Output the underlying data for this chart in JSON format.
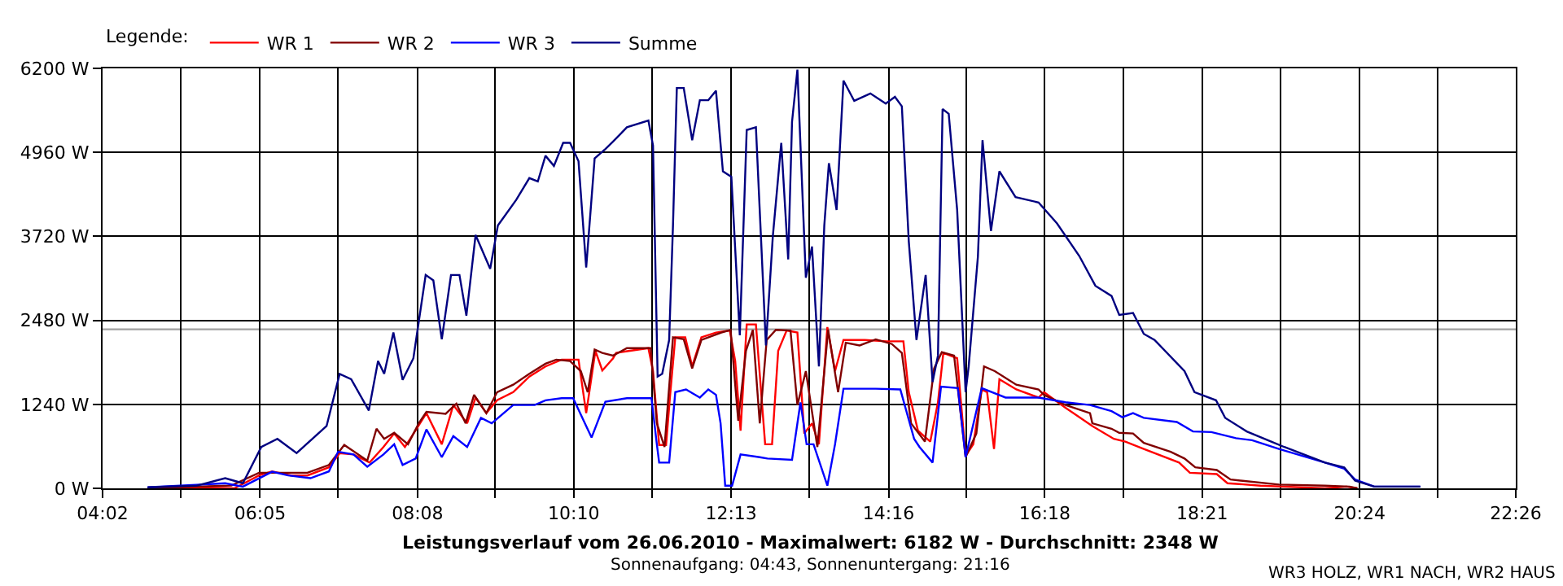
{
  "chart_data": {
    "type": "line",
    "title": "Leistungsverlauf vom 26.06.2010 - Maximalwert: 6182 W - Durchschnitt: 2348 W",
    "subtitle": "Sonnenaufgang: 04:43, Sonnenuntergang: 21:16",
    "legend_title": "Legende:",
    "legend": "top left",
    "grid": true,
    "marker": "none",
    "line_style": "solid",
    "annotations": [
      "WR3 HOLZ, WR1 NACH, WR2 HAUS"
    ],
    "xlim": [
      4.0333,
      22.4333
    ],
    "xticks": [
      {
        "value": 4.0333,
        "label": "04:02"
      },
      {
        "value": 5.0556,
        "label": null
      },
      {
        "value": 6.0833,
        "label": "06:05"
      },
      {
        "value": 7.1,
        "label": null
      },
      {
        "value": 8.1333,
        "label": "08:08"
      },
      {
        "value": 9.1444,
        "label": null
      },
      {
        "value": 10.1667,
        "label": "10:10"
      },
      {
        "value": 11.1889,
        "label": null
      },
      {
        "value": 12.2167,
        "label": "12:13"
      },
      {
        "value": 13.2333,
        "label": null
      },
      {
        "value": 14.2667,
        "label": "14:16"
      },
      {
        "value": 15.2778,
        "label": null
      },
      {
        "value": 16.3,
        "label": "16:18"
      },
      {
        "value": 17.3222,
        "label": null
      },
      {
        "value": 18.35,
        "label": "18:21"
      },
      {
        "value": 19.3667,
        "label": null
      },
      {
        "value": 20.4,
        "label": "20:24"
      },
      {
        "value": 21.4111,
        "label": null
      },
      {
        "value": 22.4333,
        "label": "22:26"
      }
    ],
    "ylim": [
      0,
      6200
    ],
    "yticks": [
      {
        "value": 0,
        "label": "0 W"
      },
      {
        "value": 1240,
        "label": "1240 W"
      },
      {
        "value": 2480,
        "label": "2480 W"
      },
      {
        "value": 3720,
        "label": "3720 W"
      },
      {
        "value": 4960,
        "label": "4960 W"
      },
      {
        "value": 6200,
        "label": "6200 W"
      }
    ],
    "ref_lines": [
      {
        "axis": "y",
        "value": 2348,
        "color": "#a0a0a0"
      }
    ],
    "series": [
      {
        "name": "WR 1",
        "color": "#ff0000",
        "x": [
          4.62,
          5.26,
          5.75,
          6.07,
          6.24,
          6.49,
          6.7,
          6.98,
          7.12,
          7.3,
          7.51,
          7.69,
          7.83,
          7.97,
          8.1,
          8.25,
          8.45,
          8.6,
          8.78,
          8.89,
          9.03,
          9.17,
          9.38,
          9.59,
          9.8,
          10.01,
          10.23,
          10.33,
          10.45,
          10.54,
          10.68,
          10.72,
          10.9,
          11.14,
          11.2,
          11.28,
          11.37,
          11.42,
          11.49,
          11.62,
          11.71,
          11.83,
          12.02,
          12.2,
          12.27,
          12.34,
          12.42,
          12.54,
          12.66,
          12.75,
          12.83,
          12.94,
          13.08,
          13.17,
          13.27,
          13.36,
          13.47,
          13.57,
          13.68,
          13.96,
          14.24,
          14.46,
          14.53,
          14.65,
          14.81,
          14.91,
          14.98,
          15.16,
          15.27,
          15.37,
          15.48,
          15.55,
          15.64,
          15.71,
          15.93,
          16.22,
          16.29,
          16.57,
          16.92,
          17.2,
          17.35,
          17.59,
          18.05,
          18.19,
          18.54,
          18.68,
          19.11,
          19.95,
          20.23,
          20.37
        ],
        "values": [
          0,
          15,
          0,
          190,
          250,
          190,
          190,
          310,
          520,
          500,
          380,
          610,
          810,
          610,
          840,
          1110,
          650,
          1230,
          960,
          1340,
          1110,
          1300,
          1420,
          1650,
          1800,
          1900,
          1900,
          1110,
          2030,
          1740,
          1920,
          2000,
          2030,
          2070,
          1730,
          640,
          640,
          1340,
          2230,
          2230,
          1800,
          2230,
          2300,
          2330,
          1880,
          850,
          2420,
          2420,
          650,
          650,
          2030,
          2330,
          2300,
          810,
          960,
          650,
          2380,
          1730,
          2190,
          2190,
          2170,
          2170,
          1420,
          850,
          690,
          1270,
          2000,
          1920,
          480,
          650,
          1460,
          1420,
          580,
          1610,
          1460,
          1340,
          1420,
          1190,
          920,
          730,
          690,
          580,
          380,
          230,
          210,
          75,
          40,
          0,
          25,
          0
        ]
      },
      {
        "name": "WR 2",
        "color": "#800000",
        "x": [
          4.62,
          5.26,
          5.71,
          6.07,
          6.7,
          6.98,
          7.18,
          7.48,
          7.6,
          7.7,
          7.83,
          8.01,
          8.15,
          8.25,
          8.5,
          8.64,
          8.76,
          8.87,
          9.03,
          9.17,
          9.38,
          9.59,
          9.8,
          9.94,
          10.12,
          10.26,
          10.35,
          10.44,
          10.54,
          10.68,
          10.86,
          11.17,
          11.25,
          11.35,
          11.46,
          11.6,
          11.71,
          11.83,
          12.09,
          12.21,
          12.31,
          12.41,
          12.5,
          12.59,
          12.68,
          12.8,
          12.99,
          13.08,
          13.19,
          13.34,
          13.48,
          13.61,
          13.71,
          13.89,
          14.1,
          14.31,
          14.44,
          14.56,
          14.74,
          14.86,
          14.96,
          15.12,
          15.27,
          15.41,
          15.51,
          15.65,
          15.93,
          16.22,
          16.29,
          16.57,
          16.89,
          16.92,
          17.17,
          17.27,
          17.45,
          17.59,
          17.94,
          18.12,
          18.26,
          18.54,
          18.72,
          19.35,
          19.95,
          20.27,
          20.37
        ],
        "values": [
          0,
          25,
          40,
          230,
          230,
          345,
          640,
          410,
          880,
          730,
          820,
          650,
          960,
          1130,
          1100,
          1250,
          960,
          1380,
          1110,
          1420,
          1530,
          1690,
          1840,
          1900,
          1880,
          1730,
          1420,
          2050,
          2000,
          1960,
          2070,
          2070,
          960,
          610,
          2230,
          2200,
          1770,
          2190,
          2300,
          2340,
          1000,
          2030,
          2340,
          960,
          2190,
          2340,
          2330,
          1230,
          1730,
          610,
          2340,
          1420,
          2150,
          2110,
          2200,
          2130,
          2000,
          960,
          690,
          1770,
          2010,
          1960,
          460,
          810,
          1800,
          1730,
          1530,
          1460,
          1380,
          1230,
          1110,
          960,
          880,
          820,
          810,
          670,
          540,
          440,
          310,
          270,
          130,
          55,
          40,
          25,
          0
        ]
      },
      {
        "name": "WR 3",
        "color": "#0000ff",
        "x": [
          4.62,
          5.63,
          5.86,
          6.24,
          6.45,
          6.74,
          6.98,
          7.1,
          7.3,
          7.48,
          7.69,
          7.83,
          7.94,
          8.11,
          8.25,
          8.45,
          8.6,
          8.78,
          8.96,
          9.1,
          9.38,
          9.66,
          9.8,
          10.01,
          10.16,
          10.33,
          10.4,
          10.58,
          10.86,
          11.18,
          11.25,
          11.28,
          11.41,
          11.49,
          11.63,
          11.81,
          11.92,
          12.02,
          12.08,
          12.14,
          12.23,
          12.34,
          12.59,
          12.69,
          13.01,
          13.12,
          13.2,
          13.29,
          13.47,
          13.57,
          13.68,
          14.1,
          14.42,
          14.6,
          14.67,
          14.84,
          14.95,
          15.17,
          15.27,
          15.48,
          15.79,
          16.22,
          16.57,
          16.89,
          17.17,
          17.31,
          17.45,
          17.59,
          18.02,
          18.23,
          18.47,
          18.79,
          19.0,
          19.35,
          19.95,
          20.2,
          20.34,
          20.59,
          21.19
        ],
        "values": [
          15,
          75,
          25,
          245,
          190,
          150,
          250,
          540,
          500,
          320,
          500,
          650,
          345,
          440,
          870,
          460,
          770,
          610,
          1040,
          960,
          1230,
          1230,
          1300,
          1330,
          1330,
          920,
          750,
          1280,
          1330,
          1330,
          650,
          380,
          380,
          1420,
          1460,
          1340,
          1460,
          1380,
          960,
          40,
          40,
          500,
          460,
          440,
          420,
          1270,
          650,
          650,
          40,
          650,
          1470,
          1470,
          1460,
          730,
          610,
          380,
          1500,
          1480,
          460,
          1480,
          1340,
          1340,
          1270,
          1230,
          1140,
          1050,
          1110,
          1040,
          980,
          840,
          830,
          740,
          710,
          580,
          380,
          290,
          130,
          25,
          25
        ]
      },
      {
        "name": "Summe",
        "color": "#000080",
        "x": [
          4.62,
          5.26,
          5.63,
          5.86,
          6.1,
          6.31,
          6.56,
          6.95,
          7.12,
          7.27,
          7.5,
          7.62,
          7.7,
          7.82,
          7.94,
          8.08,
          8.24,
          8.34,
          8.45,
          8.57,
          8.68,
          8.77,
          8.89,
          9.08,
          9.18,
          9.42,
          9.59,
          9.7,
          9.8,
          9.91,
          10.03,
          10.12,
          10.23,
          10.33,
          10.44,
          10.58,
          10.68,
          10.86,
          11.14,
          11.2,
          11.26,
          11.32,
          11.41,
          11.46,
          11.51,
          11.6,
          11.71,
          11.81,
          11.92,
          12.02,
          12.11,
          12.22,
          12.33,
          12.42,
          12.54,
          12.67,
          12.76,
          12.87,
          12.96,
          13.01,
          13.08,
          13.19,
          13.27,
          13.36,
          13.43,
          13.49,
          13.59,
          13.68,
          13.82,
          14.03,
          14.23,
          14.35,
          14.44,
          14.53,
          14.63,
          14.75,
          14.84,
          14.91,
          14.97,
          15.05,
          15.16,
          15.27,
          15.31,
          15.43,
          15.49,
          15.6,
          15.71,
          15.92,
          16.22,
          16.46,
          16.75,
          16.96,
          17.17,
          17.27,
          17.45,
          17.59,
          17.73,
          18.12,
          18.25,
          18.53,
          18.65,
          18.93,
          19.25,
          19.42,
          19.95,
          20.2,
          20.34,
          20.59,
          21.19
        ],
        "values": [
          15,
          40,
          150,
          75,
          610,
          730,
          520,
          920,
          1690,
          1610,
          1150,
          1880,
          1690,
          2300,
          1600,
          1920,
          3150,
          3070,
          2200,
          3150,
          3150,
          2550,
          3740,
          3240,
          3880,
          4260,
          4580,
          4530,
          4910,
          4760,
          5100,
          5100,
          4830,
          3260,
          4870,
          5010,
          5120,
          5330,
          5430,
          5060,
          1650,
          1690,
          2190,
          3880,
          5910,
          5910,
          5140,
          5730,
          5730,
          5870,
          4680,
          4600,
          2260,
          5290,
          5330,
          2110,
          3720,
          5100,
          3380,
          5410,
          6180,
          3110,
          3570,
          1800,
          3880,
          4800,
          4110,
          6020,
          5720,
          5830,
          5680,
          5780,
          5640,
          3650,
          2190,
          3150,
          1570,
          1960,
          5600,
          5530,
          4110,
          1420,
          1800,
          3420,
          5140,
          3800,
          4680,
          4300,
          4220,
          3910,
          3430,
          2990,
          2840,
          2560,
          2590,
          2280,
          2190,
          1730,
          1420,
          1300,
          1040,
          840,
          690,
          610,
          380,
          310,
          115,
          25,
          25
        ]
      }
    ]
  }
}
